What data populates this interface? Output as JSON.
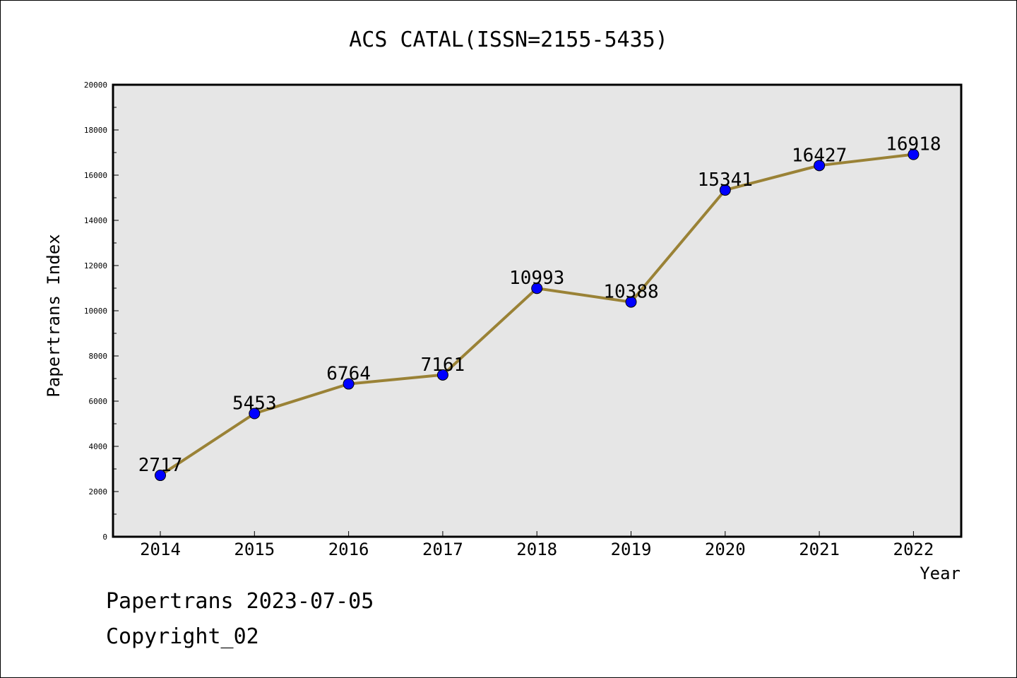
{
  "chart_data": {
    "type": "line",
    "title": "ACS CATAL(ISSN=2155-5435)",
    "xlabel": "Year",
    "ylabel": "Papertrans Index",
    "categories": [
      "2014",
      "2015",
      "2016",
      "2017",
      "2018",
      "2019",
      "2020",
      "2021",
      "2022"
    ],
    "series": [
      {
        "values": [
          2717,
          5453,
          6764,
          7161,
          10993,
          10388,
          15341,
          16427,
          16918
        ]
      }
    ],
    "ylim": [
      0,
      20000
    ],
    "yticks": [
      0,
      2000,
      4000,
      6000,
      8000,
      10000,
      12000,
      14000,
      16000,
      18000,
      20000
    ],
    "grid": false,
    "colors": {
      "line": "#9a8236",
      "marker": "#0000ff",
      "plot_background": "#e6e6e6"
    }
  },
  "footer": {
    "date_line": "Papertrans 2023-07-05",
    "copyright_line": "Copyright_02"
  }
}
